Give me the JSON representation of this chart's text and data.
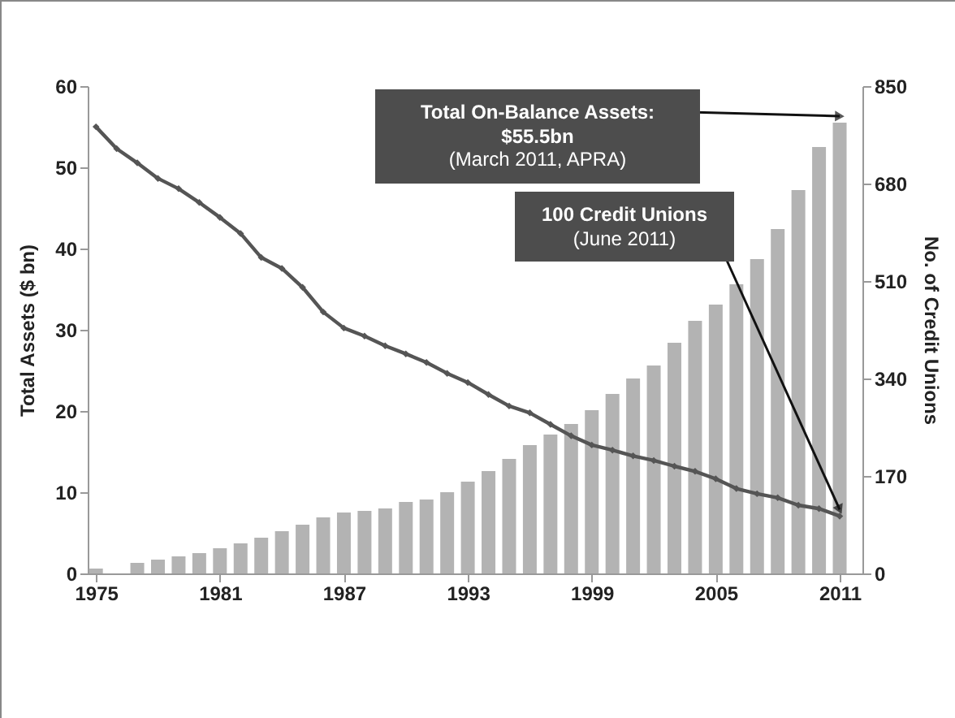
{
  "chart_data": {
    "type": "bar",
    "x": [
      1975,
      1976,
      1977,
      1978,
      1979,
      1980,
      1981,
      1982,
      1983,
      1984,
      1985,
      1986,
      1987,
      1988,
      1989,
      1990,
      1991,
      1992,
      1993,
      1994,
      1995,
      1996,
      1997,
      1998,
      1999,
      2000,
      2001,
      2002,
      2003,
      2004,
      2005,
      2006,
      2007,
      2008,
      2009,
      2010,
      2011
    ],
    "series": [
      {
        "color": "#b3b3b3",
        "values": [
          0.6,
          null,
          1.3,
          1.7,
          2.1,
          2.5,
          3.1,
          3.7,
          4.4,
          5.2,
          6.0,
          6.9,
          7.5,
          7.7,
          8.0,
          8.8,
          9.1,
          10.0,
          11.3,
          12.6,
          14.1,
          15.8,
          17.1,
          18.4,
          20.1,
          22.1,
          24.0,
          25.6,
          28.4,
          31.1,
          33.1,
          35.6,
          38.7,
          42.4,
          47.2,
          52.5,
          55.5
        ]
      },
      {
        "type": "line",
        "axis": "y2",
        "color": "#555555",
        "marker": "diamond",
        "values": [
          779,
          741,
          716,
          689,
          671,
          647,
          621,
          593,
          551,
          532,
          499,
          456,
          428,
          414,
          397,
          383,
          368,
          349,
          333,
          312,
          292,
          280,
          260,
          240,
          224,
          215,
          205,
          197,
          187,
          178,
          165,
          148,
          139,
          132,
          119,
          113,
          100
        ]
      }
    ],
    "xlim": [
      1974.6,
      2012.1
    ],
    "xticks": [
      1975,
      1981,
      1987,
      1993,
      1999,
      2005,
      2011
    ],
    "ylim": [
      0,
      60
    ],
    "yticks": [
      0,
      10,
      20,
      30,
      40,
      50,
      60
    ],
    "y2lim": [
      0,
      850
    ],
    "y2ticks": [
      0,
      170,
      340,
      510,
      680,
      850
    ],
    "ylabel": "Total Assets ($ bn)",
    "y2label": "No. of Credit Unions",
    "annotations": [
      "Total On-Balance Assets:\n$55.5bn\n(March 2011, APRA)",
      "100 Credit Unions\n(June 2011)"
    ],
    "grid": false
  }
}
